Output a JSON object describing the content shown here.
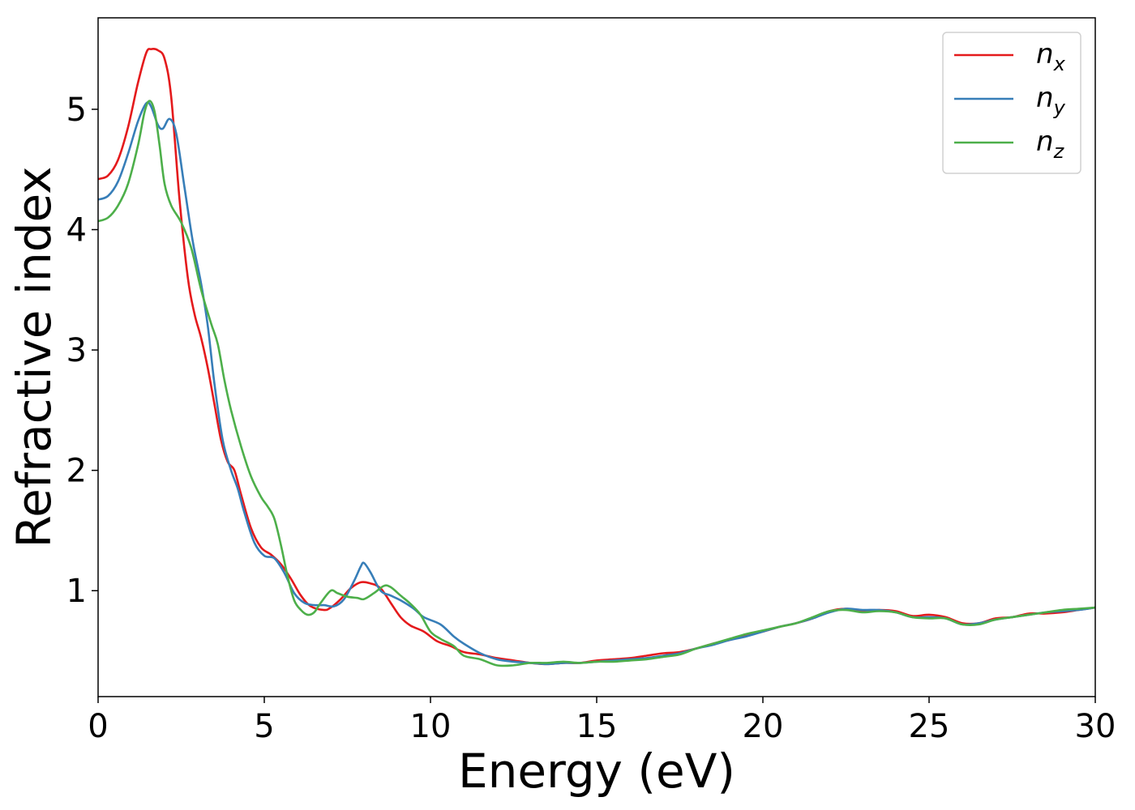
{
  "chart_data": {
    "type": "line",
    "title": "",
    "xlabel": "Energy (eV)",
    "ylabel": "Refractive index",
    "xlim": [
      0,
      30
    ],
    "ylim": [
      0.12,
      5.76
    ],
    "xticks": [
      0,
      5,
      10,
      15,
      20,
      25,
      30
    ],
    "yticks": [
      1,
      2,
      3,
      4,
      5
    ],
    "grid": false,
    "legend": "top-right",
    "series": [
      {
        "name": "n_x",
        "label_base": "n",
        "label_sub": "x",
        "color": "#e41a1c",
        "points": [
          [
            0,
            4.42
          ],
          [
            0.3,
            4.45
          ],
          [
            0.6,
            4.58
          ],
          [
            0.9,
            4.85
          ],
          [
            1.2,
            5.22
          ],
          [
            1.45,
            5.47
          ],
          [
            1.6,
            5.5
          ],
          [
            1.8,
            5.49
          ],
          [
            2.0,
            5.42
          ],
          [
            2.2,
            5.1
          ],
          [
            2.45,
            4.25
          ],
          [
            2.7,
            3.6
          ],
          [
            2.9,
            3.3
          ],
          [
            3.1,
            3.1
          ],
          [
            3.3,
            2.85
          ],
          [
            3.5,
            2.55
          ],
          [
            3.7,
            2.25
          ],
          [
            3.9,
            2.07
          ],
          [
            4.1,
            2.0
          ],
          [
            4.3,
            1.8
          ],
          [
            4.6,
            1.52
          ],
          [
            4.9,
            1.36
          ],
          [
            5.2,
            1.3
          ],
          [
            5.5,
            1.22
          ],
          [
            5.8,
            1.1
          ],
          [
            6.1,
            0.96
          ],
          [
            6.4,
            0.87
          ],
          [
            6.8,
            0.84
          ],
          [
            7.0,
            0.86
          ],
          [
            7.3,
            0.93
          ],
          [
            7.6,
            1.02
          ],
          [
            7.9,
            1.07
          ],
          [
            8.2,
            1.06
          ],
          [
            8.5,
            1.02
          ],
          [
            8.8,
            0.9
          ],
          [
            9.1,
            0.78
          ],
          [
            9.4,
            0.71
          ],
          [
            9.8,
            0.66
          ],
          [
            10.2,
            0.58
          ],
          [
            10.6,
            0.54
          ],
          [
            11.0,
            0.49
          ],
          [
            11.5,
            0.47
          ],
          [
            12.0,
            0.44
          ],
          [
            12.5,
            0.42
          ],
          [
            13.0,
            0.4
          ],
          [
            13.5,
            0.39
          ],
          [
            14.0,
            0.4
          ],
          [
            14.5,
            0.4
          ],
          [
            15.0,
            0.42
          ],
          [
            15.5,
            0.43
          ],
          [
            16.0,
            0.44
          ],
          [
            16.5,
            0.46
          ],
          [
            17.0,
            0.48
          ],
          [
            17.5,
            0.49
          ],
          [
            18.0,
            0.52
          ],
          [
            18.5,
            0.56
          ],
          [
            19.0,
            0.59
          ],
          [
            19.5,
            0.63
          ],
          [
            20.0,
            0.66
          ],
          [
            20.5,
            0.7
          ],
          [
            21.0,
            0.73
          ],
          [
            21.5,
            0.77
          ],
          [
            22.0,
            0.83
          ],
          [
            22.5,
            0.85
          ],
          [
            23.0,
            0.83
          ],
          [
            23.5,
            0.84
          ],
          [
            24.0,
            0.83
          ],
          [
            24.5,
            0.79
          ],
          [
            25.0,
            0.8
          ],
          [
            25.5,
            0.78
          ],
          [
            26.0,
            0.73
          ],
          [
            26.5,
            0.73
          ],
          [
            27.0,
            0.77
          ],
          [
            27.5,
            0.78
          ],
          [
            28.0,
            0.81
          ],
          [
            28.5,
            0.81
          ],
          [
            29.0,
            0.82
          ],
          [
            29.5,
            0.84
          ],
          [
            30.0,
            0.86
          ]
        ]
      },
      {
        "name": "n_y",
        "label_base": "n",
        "label_sub": "y",
        "color": "#377eb8",
        "points": [
          [
            0,
            4.25
          ],
          [
            0.3,
            4.28
          ],
          [
            0.6,
            4.4
          ],
          [
            0.9,
            4.63
          ],
          [
            1.2,
            4.9
          ],
          [
            1.45,
            5.05
          ],
          [
            1.6,
            5.02
          ],
          [
            1.8,
            4.87
          ],
          [
            1.95,
            4.84
          ],
          [
            2.15,
            4.92
          ],
          [
            2.35,
            4.8
          ],
          [
            2.6,
            4.35
          ],
          [
            2.85,
            3.9
          ],
          [
            3.1,
            3.55
          ],
          [
            3.3,
            3.2
          ],
          [
            3.5,
            2.72
          ],
          [
            3.75,
            2.25
          ],
          [
            4.0,
            2.0
          ],
          [
            4.2,
            1.85
          ],
          [
            4.4,
            1.65
          ],
          [
            4.7,
            1.4
          ],
          [
            5.0,
            1.29
          ],
          [
            5.3,
            1.27
          ],
          [
            5.6,
            1.15
          ],
          [
            5.9,
            0.98
          ],
          [
            6.2,
            0.9
          ],
          [
            6.5,
            0.88
          ],
          [
            6.8,
            0.88
          ],
          [
            7.1,
            0.87
          ],
          [
            7.4,
            0.93
          ],
          [
            7.7,
            1.08
          ],
          [
            7.9,
            1.2
          ],
          [
            8.0,
            1.23
          ],
          [
            8.2,
            1.15
          ],
          [
            8.5,
            1.0
          ],
          [
            8.8,
            0.96
          ],
          [
            9.1,
            0.92
          ],
          [
            9.5,
            0.85
          ],
          [
            9.8,
            0.78
          ],
          [
            10.3,
            0.72
          ],
          [
            10.7,
            0.62
          ],
          [
            11.0,
            0.56
          ],
          [
            11.5,
            0.48
          ],
          [
            12.0,
            0.43
          ],
          [
            12.5,
            0.41
          ],
          [
            13.0,
            0.4
          ],
          [
            13.5,
            0.39
          ],
          [
            14.0,
            0.4
          ],
          [
            14.5,
            0.4
          ],
          [
            15.0,
            0.41
          ],
          [
            15.5,
            0.42
          ],
          [
            16.0,
            0.43
          ],
          [
            16.5,
            0.44
          ],
          [
            17.0,
            0.46
          ],
          [
            17.5,
            0.48
          ],
          [
            18.0,
            0.52
          ],
          [
            18.5,
            0.55
          ],
          [
            19.0,
            0.59
          ],
          [
            19.5,
            0.62
          ],
          [
            20.0,
            0.66
          ],
          [
            20.5,
            0.7
          ],
          [
            21.0,
            0.73
          ],
          [
            21.5,
            0.77
          ],
          [
            22.0,
            0.82
          ],
          [
            22.5,
            0.85
          ],
          [
            23.0,
            0.84
          ],
          [
            23.5,
            0.84
          ],
          [
            24.0,
            0.82
          ],
          [
            24.5,
            0.78
          ],
          [
            25.0,
            0.78
          ],
          [
            25.5,
            0.77
          ],
          [
            26.0,
            0.72
          ],
          [
            26.5,
            0.73
          ],
          [
            27.0,
            0.76
          ],
          [
            27.5,
            0.78
          ],
          [
            28.0,
            0.8
          ],
          [
            28.5,
            0.82
          ],
          [
            29.0,
            0.83
          ],
          [
            29.5,
            0.84
          ],
          [
            30.0,
            0.86
          ]
        ]
      },
      {
        "name": "n_z",
        "label_base": "n",
        "label_sub": "z",
        "color": "#4daf4a",
        "points": [
          [
            0,
            4.07
          ],
          [
            0.3,
            4.1
          ],
          [
            0.6,
            4.2
          ],
          [
            0.9,
            4.38
          ],
          [
            1.2,
            4.7
          ],
          [
            1.4,
            4.98
          ],
          [
            1.55,
            5.07
          ],
          [
            1.7,
            4.98
          ],
          [
            1.85,
            4.7
          ],
          [
            2.0,
            4.38
          ],
          [
            2.2,
            4.2
          ],
          [
            2.5,
            4.06
          ],
          [
            2.8,
            3.85
          ],
          [
            3.1,
            3.5
          ],
          [
            3.4,
            3.22
          ],
          [
            3.6,
            3.05
          ],
          [
            3.8,
            2.75
          ],
          [
            4.0,
            2.5
          ],
          [
            4.3,
            2.2
          ],
          [
            4.6,
            1.95
          ],
          [
            4.9,
            1.78
          ],
          [
            5.1,
            1.7
          ],
          [
            5.3,
            1.6
          ],
          [
            5.5,
            1.38
          ],
          [
            5.7,
            1.12
          ],
          [
            5.9,
            0.92
          ],
          [
            6.1,
            0.84
          ],
          [
            6.3,
            0.8
          ],
          [
            6.5,
            0.82
          ],
          [
            6.7,
            0.9
          ],
          [
            7.0,
            1.0
          ],
          [
            7.2,
            0.98
          ],
          [
            7.5,
            0.95
          ],
          [
            7.8,
            0.94
          ],
          [
            8.0,
            0.93
          ],
          [
            8.3,
            0.98
          ],
          [
            8.6,
            1.04
          ],
          [
            8.8,
            1.03
          ],
          [
            9.1,
            0.96
          ],
          [
            9.4,
            0.89
          ],
          [
            9.7,
            0.8
          ],
          [
            10.0,
            0.66
          ],
          [
            10.3,
            0.6
          ],
          [
            10.7,
            0.54
          ],
          [
            11.0,
            0.46
          ],
          [
            11.5,
            0.43
          ],
          [
            12.0,
            0.38
          ],
          [
            12.5,
            0.38
          ],
          [
            13.0,
            0.4
          ],
          [
            13.5,
            0.4
          ],
          [
            14.0,
            0.41
          ],
          [
            14.5,
            0.4
          ],
          [
            15.0,
            0.41
          ],
          [
            15.5,
            0.41
          ],
          [
            16.0,
            0.42
          ],
          [
            16.5,
            0.43
          ],
          [
            17.0,
            0.45
          ],
          [
            17.5,
            0.47
          ],
          [
            18.0,
            0.52
          ],
          [
            18.5,
            0.56
          ],
          [
            19.0,
            0.6
          ],
          [
            19.5,
            0.64
          ],
          [
            20.0,
            0.67
          ],
          [
            20.5,
            0.7
          ],
          [
            21.0,
            0.73
          ],
          [
            21.5,
            0.78
          ],
          [
            22.0,
            0.83
          ],
          [
            22.5,
            0.84
          ],
          [
            23.0,
            0.82
          ],
          [
            23.5,
            0.83
          ],
          [
            24.0,
            0.82
          ],
          [
            24.5,
            0.78
          ],
          [
            25.0,
            0.77
          ],
          [
            25.5,
            0.77
          ],
          [
            26.0,
            0.72
          ],
          [
            26.5,
            0.72
          ],
          [
            27.0,
            0.76
          ],
          [
            27.5,
            0.78
          ],
          [
            28.0,
            0.8
          ],
          [
            28.5,
            0.82
          ],
          [
            29.0,
            0.84
          ],
          [
            29.5,
            0.85
          ],
          [
            30.0,
            0.86
          ]
        ]
      }
    ]
  }
}
